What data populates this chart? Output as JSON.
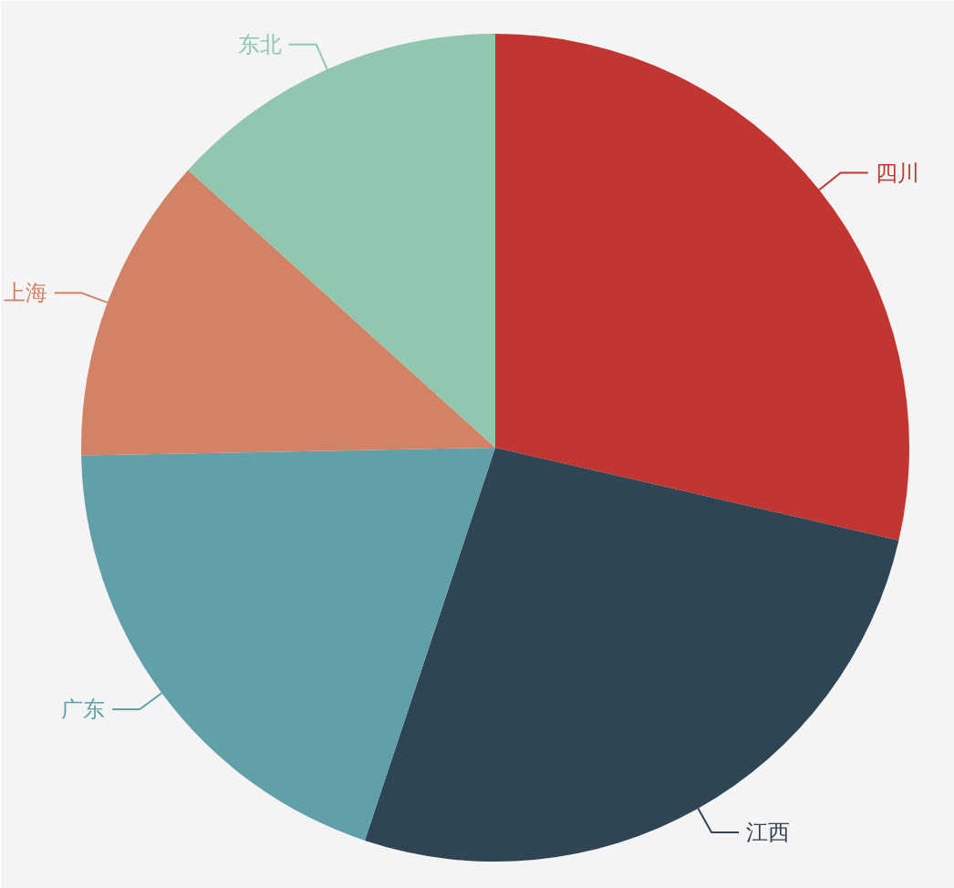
{
  "chart_data": {
    "type": "pie",
    "categories": [
      "四川",
      "江西",
      "广东",
      "上海",
      "东北"
    ],
    "values": [
      28.6,
      26.5,
      19.6,
      12.0,
      13.3
    ],
    "colors": [
      "#c23531",
      "#2f4554",
      "#61a0a8",
      "#d48265",
      "#91c7ae"
    ]
  }
}
